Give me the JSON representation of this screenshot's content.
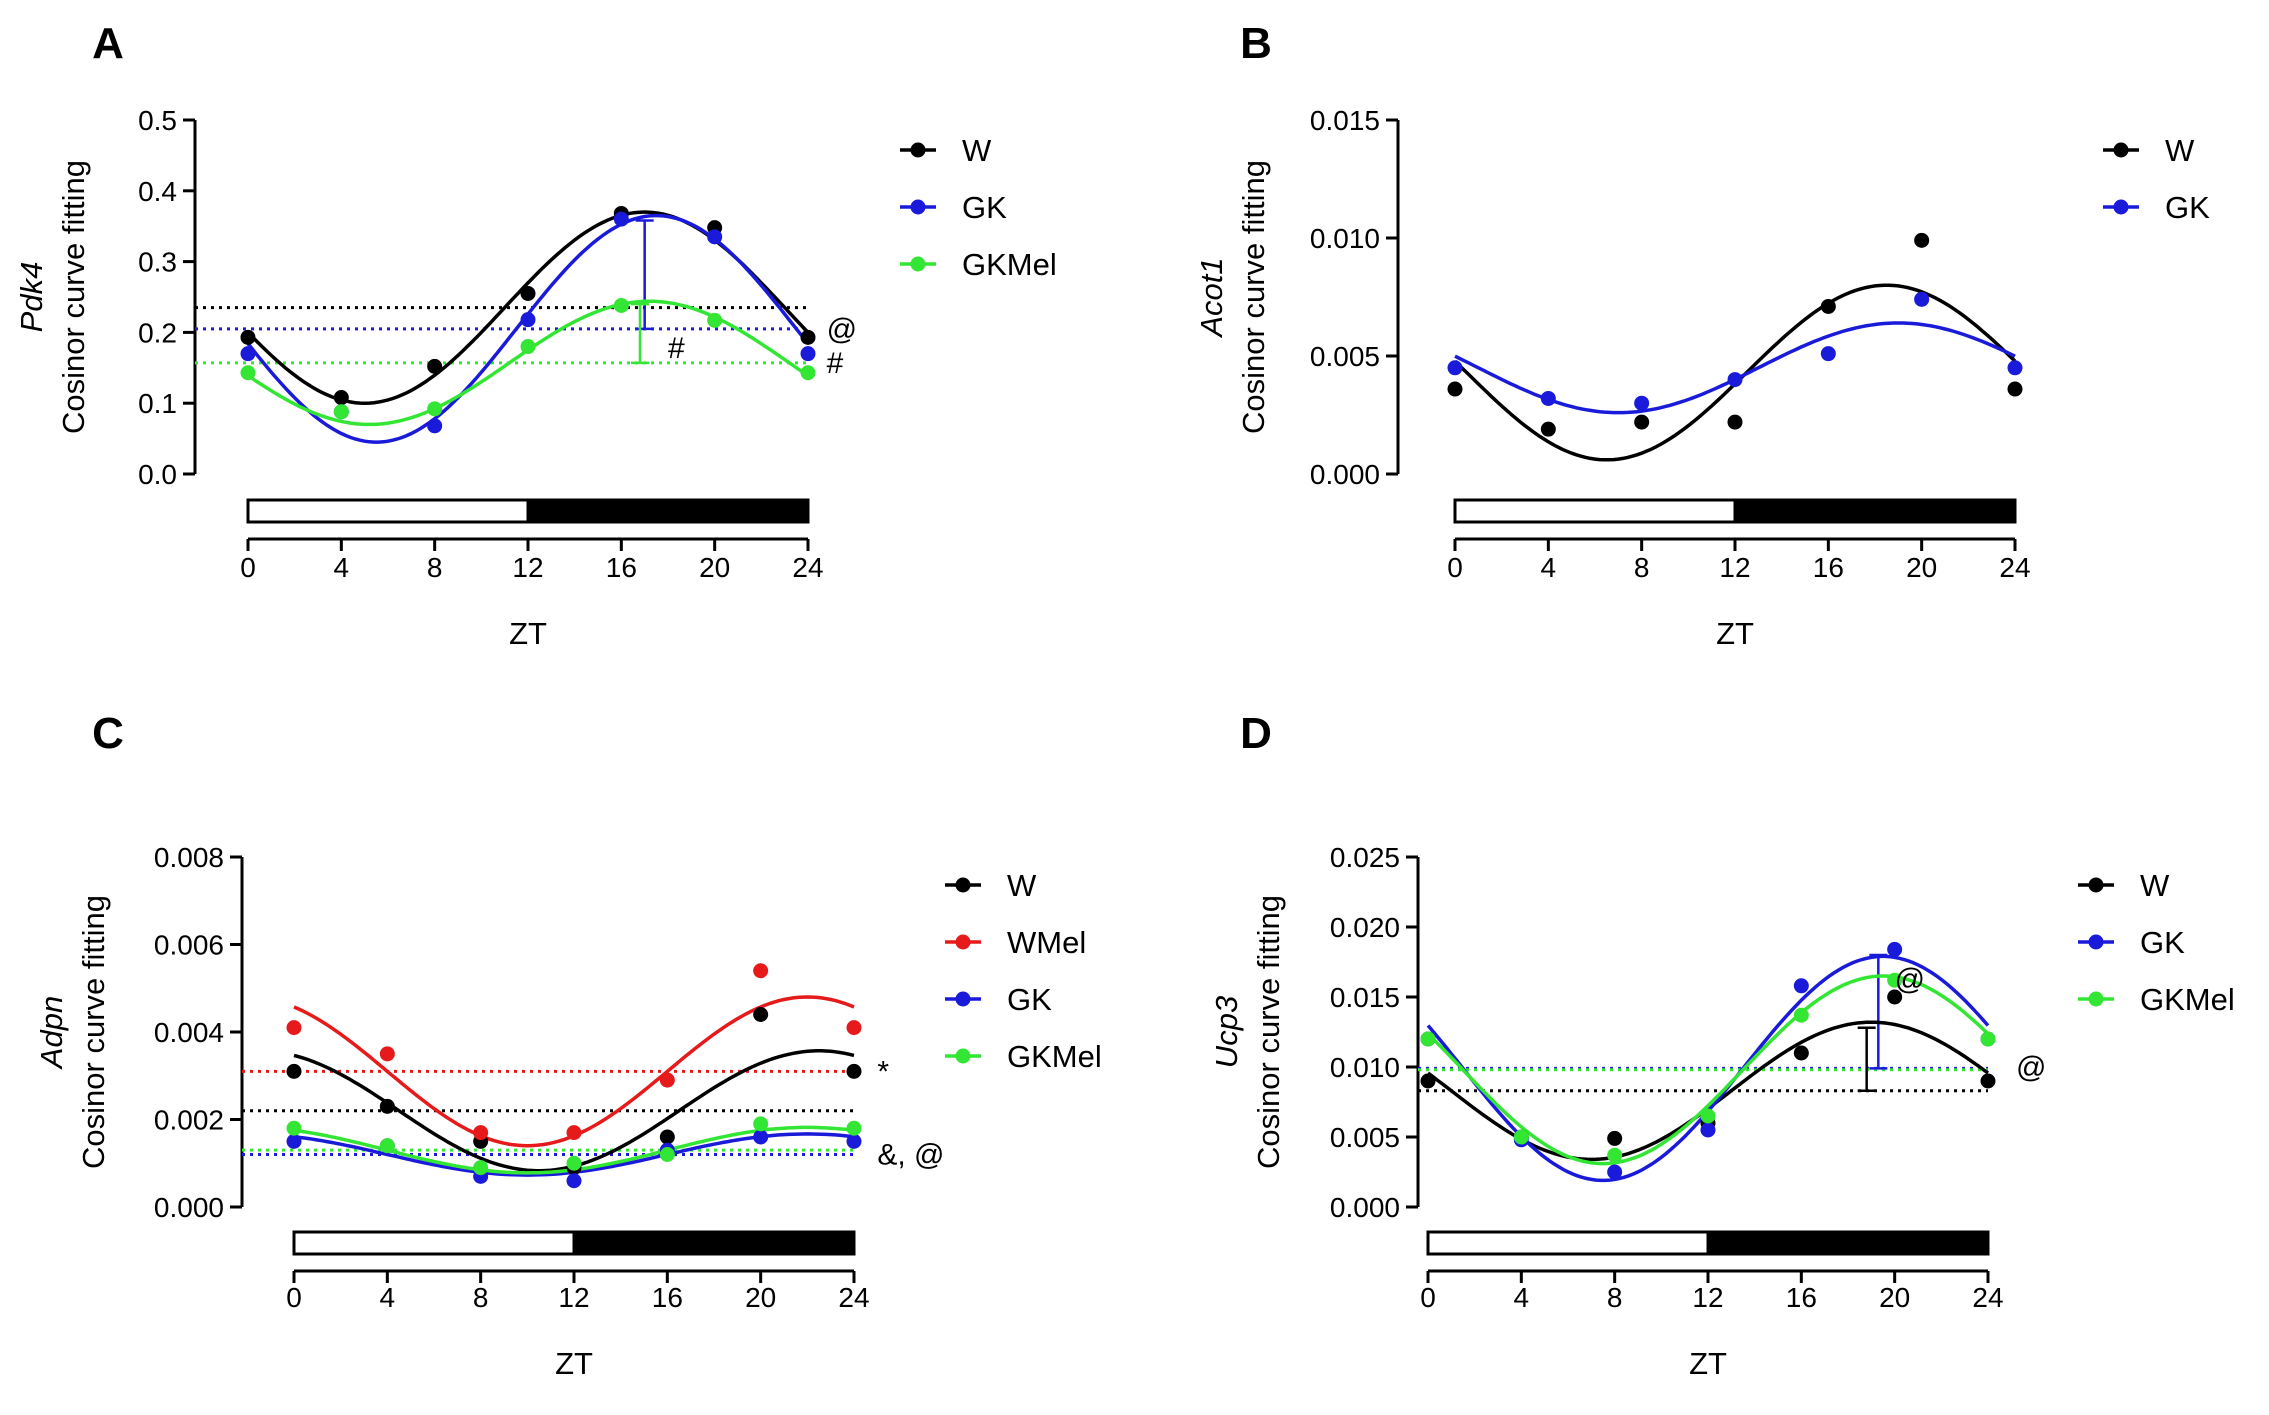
{
  "chart_data": [
    {
      "panel": "A",
      "type": "scatter",
      "xlabel": "ZT",
      "ylabel_gene": "Pdk4",
      "ylabel": "Cosinor curve fitting",
      "x_ticks": [
        "0",
        "4",
        "8",
        "12",
        "16",
        "20",
        "24"
      ],
      "y_ticks": [
        "0.0",
        "0.1",
        "0.2",
        "0.3",
        "0.4",
        "0.5"
      ],
      "xlim": [
        0,
        24
      ],
      "ylim": [
        0,
        0.5
      ],
      "x": [
        0,
        4,
        8,
        12,
        16,
        20,
        24
      ],
      "series": [
        {
          "name": "W",
          "color": "#000000",
          "values": [
            0.193,
            0.108,
            0.152,
            0.255,
            0.368,
            0.348,
            0.193
          ],
          "mesor": 0.235,
          "amplitude": 0.135,
          "acrophase": 17.0
        },
        {
          "name": "GK",
          "color": "#1a1adb",
          "values": [
            0.17,
            0.088,
            0.068,
            0.218,
            0.36,
            0.335,
            0.17
          ],
          "mesor": 0.205,
          "amplitude": 0.16,
          "acrophase": 17.5
        },
        {
          "name": "GKMel",
          "color": "#33e633",
          "values": [
            0.143,
            0.088,
            0.092,
            0.18,
            0.238,
            0.217,
            0.143
          ],
          "mesor": 0.157,
          "amplitude": 0.087,
          "acrophase": 17.2
        }
      ],
      "light_dark_bar": {
        "light": [
          0,
          12
        ],
        "dark": [
          12,
          24
        ]
      },
      "amplitude_bars": [
        {
          "x": 17.0,
          "y_low": 0.205,
          "y_high": 0.358,
          "color": "#1a1adb"
        },
        {
          "x": 16.8,
          "y_low": 0.157,
          "y_high": 0.24,
          "color": "#33e633"
        }
      ],
      "annotations": [
        {
          "text": "@",
          "x": 24.8,
          "y": 0.205
        },
        {
          "text": "#",
          "x": 24.8,
          "y": 0.157
        },
        {
          "text": "#",
          "x": 18.0,
          "y": 0.178
        }
      ]
    },
    {
      "panel": "B",
      "type": "scatter",
      "xlabel": "ZT",
      "ylabel_gene": "Acot1",
      "ylabel": "Cosinor curve fitting",
      "x_ticks": [
        "0",
        "4",
        "8",
        "12",
        "16",
        "20",
        "24"
      ],
      "y_ticks": [
        "0.000",
        "0.005",
        "0.010",
        "0.015"
      ],
      "xlim": [
        0,
        24
      ],
      "ylim": [
        0,
        0.015
      ],
      "x": [
        0,
        4,
        8,
        12,
        16,
        20,
        24
      ],
      "series": [
        {
          "name": "W",
          "color": "#000000",
          "values": [
            0.0036,
            0.0019,
            0.0022,
            0.0022,
            0.0071,
            0.0099,
            0.0036
          ],
          "mesor": 0.0043,
          "amplitude": 0.0037,
          "acrophase": 18.5
        },
        {
          "name": "GK",
          "color": "#1a1adb",
          "values": [
            0.0045,
            0.0032,
            0.003,
            0.004,
            0.0051,
            0.0074,
            0.0045
          ],
          "mesor": 0.0045,
          "amplitude": 0.0019,
          "acrophase": 19.0
        }
      ],
      "light_dark_bar": {
        "light": [
          0,
          12
        ],
        "dark": [
          12,
          24
        ]
      },
      "amplitude_bars": [],
      "annotations": []
    },
    {
      "panel": "C",
      "type": "scatter",
      "xlabel": "ZT",
      "ylabel_gene": "Adpn",
      "ylabel": "Cosinor curve fitting",
      "x_ticks": [
        "0",
        "4",
        "8",
        "12",
        "16",
        "20",
        "24"
      ],
      "y_ticks": [
        "0.000",
        "0.002",
        "0.004",
        "0.006",
        "0.008"
      ],
      "xlim": [
        0,
        24
      ],
      "ylim": [
        0,
        0.008
      ],
      "x": [
        0,
        4,
        8,
        12,
        16,
        20,
        24
      ],
      "series": [
        {
          "name": "W",
          "color": "#000000",
          "values": [
            0.0031,
            0.0023,
            0.0015,
            0.0009,
            0.0016,
            0.0044,
            0.0031
          ],
          "mesor": 0.0022,
          "amplitude": 0.00137,
          "acrophase": 22.5
        },
        {
          "name": "WMel",
          "color": "#e61a1a",
          "values": [
            0.0041,
            0.0035,
            0.0017,
            0.0017,
            0.0029,
            0.0054,
            0.0041
          ],
          "mesor": 0.0031,
          "amplitude": 0.0017,
          "acrophase": 22.0
        },
        {
          "name": "GK",
          "color": "#1a1adb",
          "values": [
            0.0015,
            0.0014,
            0.0007,
            0.0006,
            0.0013,
            0.0016,
            0.0015
          ],
          "mesor": 0.0012,
          "amplitude": 0.00047,
          "acrophase": 22.0
        },
        {
          "name": "GKMel",
          "color": "#33e633",
          "values": [
            0.0018,
            0.0014,
            0.0009,
            0.001,
            0.0012,
            0.0019,
            0.0018
          ],
          "mesor": 0.0013,
          "amplitude": 0.00052,
          "acrophase": 22.0
        }
      ],
      "light_dark_bar": {
        "light": [
          0,
          12
        ],
        "dark": [
          12,
          24
        ]
      },
      "amplitude_bars": [],
      "annotations": [
        {
          "text": "*",
          "x": 25.0,
          "y": 0.0031
        },
        {
          "text": "&, @",
          "x": 25.0,
          "y": 0.0012
        }
      ]
    },
    {
      "panel": "D",
      "type": "scatter",
      "xlabel": "ZT",
      "ylabel_gene": "Ucp3",
      "ylabel": "Cosinor curve fitting",
      "x_ticks": [
        "0",
        "4",
        "8",
        "12",
        "16",
        "20",
        "24"
      ],
      "y_ticks": [
        "0.000",
        "0.005",
        "0.010",
        "0.015",
        "0.020",
        "0.025"
      ],
      "xlim": [
        0,
        24
      ],
      "ylim": [
        0,
        0.025
      ],
      "x": [
        0,
        4,
        8,
        12,
        16,
        20,
        24
      ],
      "series": [
        {
          "name": "W",
          "color": "#000000",
          "values": [
            0.009,
            0.005,
            0.0049,
            0.006,
            0.011,
            0.015,
            0.009
          ],
          "mesor": 0.0083,
          "amplitude": 0.0049,
          "acrophase": 19.0
        },
        {
          "name": "GK",
          "color": "#1a1adb",
          "values": [
            0.012,
            0.0048,
            0.0025,
            0.0055,
            0.0158,
            0.0184,
            0.012
          ],
          "mesor": 0.0099,
          "amplitude": 0.008,
          "acrophase": 19.5
        },
        {
          "name": "GKMel",
          "color": "#33e633",
          "values": [
            0.012,
            0.005,
            0.0037,
            0.0065,
            0.0137,
            0.0162,
            0.012
          ],
          "mesor": 0.0098,
          "amplitude": 0.0067,
          "acrophase": 19.5
        }
      ],
      "light_dark_bar": {
        "light": [
          0,
          12
        ],
        "dark": [
          12,
          24
        ]
      },
      "amplitude_bars": [
        {
          "x": 18.8,
          "y_low": 0.0083,
          "y_high": 0.0128,
          "color": "#000000"
        },
        {
          "x": 19.3,
          "y_low": 0.0099,
          "y_high": 0.018,
          "color": "#1a1adb"
        }
      ],
      "annotations": [
        {
          "text": "@",
          "x": 20.0,
          "y": 0.0163
        },
        {
          "text": "@",
          "x": 25.2,
          "y": 0.01
        }
      ]
    }
  ]
}
